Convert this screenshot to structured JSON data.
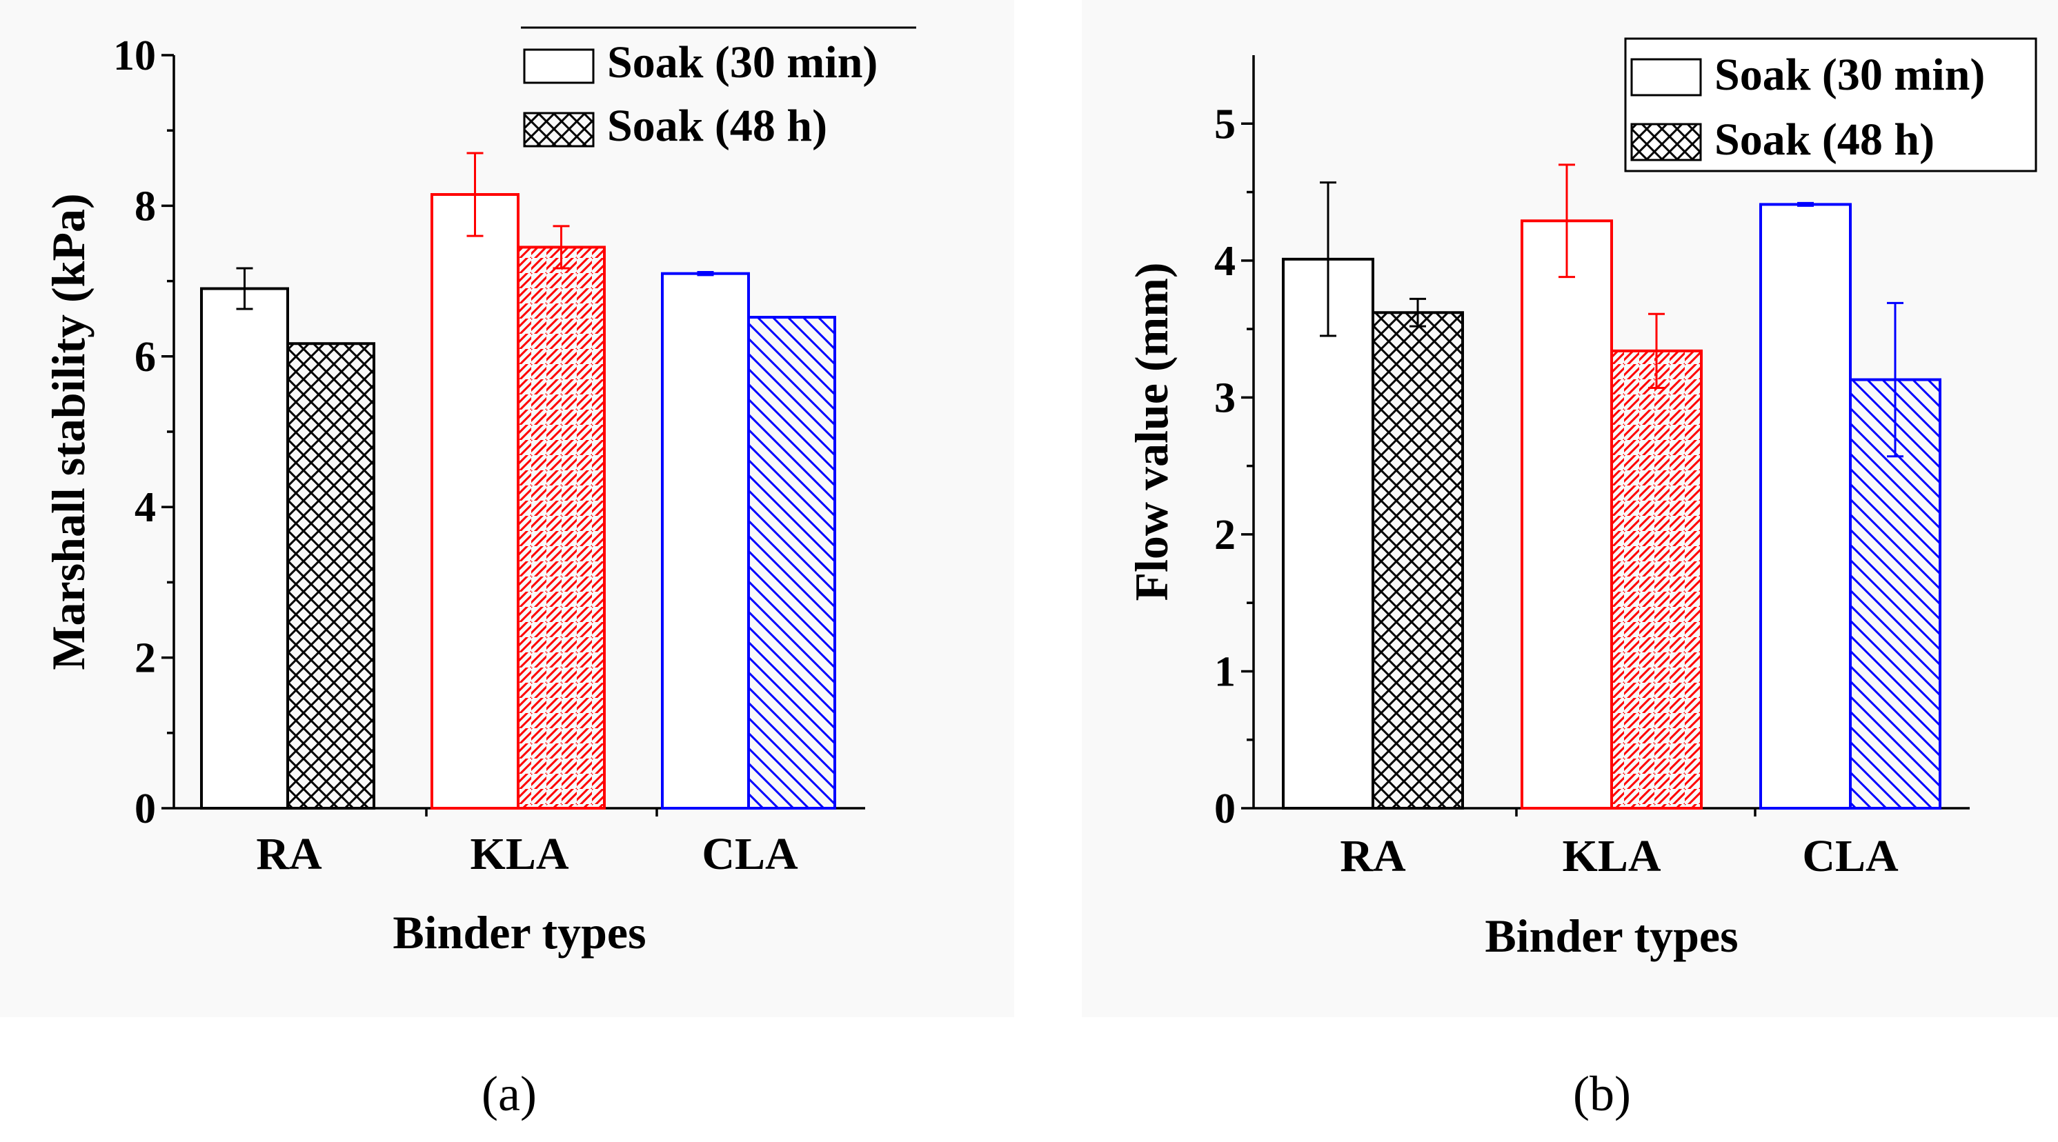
{
  "chart_data": [
    {
      "type": "bar",
      "panel_caption": "(a)",
      "categories": [
        "RA",
        "KLA",
        "CLA"
      ],
      "category_colors": [
        "#000000",
        "#ff0000",
        "#0000ff"
      ],
      "series": [
        {
          "name": "Soak (30 min)",
          "pattern": "none",
          "values": [
            6.9,
            8.15,
            7.1
          ],
          "errors": [
            0.27,
            0.55,
            0.02
          ]
        },
        {
          "name": "Soak (48 h)",
          "pattern": "crosshatch",
          "values": [
            6.17,
            7.45,
            6.52
          ],
          "errors": [
            0,
            0.28,
            0
          ]
        }
      ],
      "title": "",
      "xlabel": "Binder types",
      "ylabel": "Marshall stability (kPa)",
      "ylim": [
        0,
        10
      ],
      "yticks": [
        "0",
        "2",
        "4",
        "6",
        "8",
        "10"
      ],
      "legend_position": "top-right"
    },
    {
      "type": "bar",
      "panel_caption": "(b)",
      "categories": [
        "RA",
        "KLA",
        "CLA"
      ],
      "category_colors": [
        "#000000",
        "#ff0000",
        "#0000ff"
      ],
      "series": [
        {
          "name": "Soak (30 min)",
          "pattern": "none",
          "values": [
            4.01,
            4.29,
            4.41
          ],
          "errors": [
            0.56,
            0.41,
            0.01
          ]
        },
        {
          "name": "Soak (48 h)",
          "pattern": "crosshatch",
          "values": [
            3.62,
            3.34,
            3.13
          ],
          "errors": [
            0.1,
            0.27,
            0.56
          ]
        }
      ],
      "title": "",
      "xlabel": "Binder types",
      "ylabel": "Flow value (mm)",
      "ylim": [
        0,
        5.5
      ],
      "yticks": [
        "0",
        "1",
        "2",
        "3",
        "4",
        "5"
      ],
      "legend_position": "top-right"
    }
  ]
}
